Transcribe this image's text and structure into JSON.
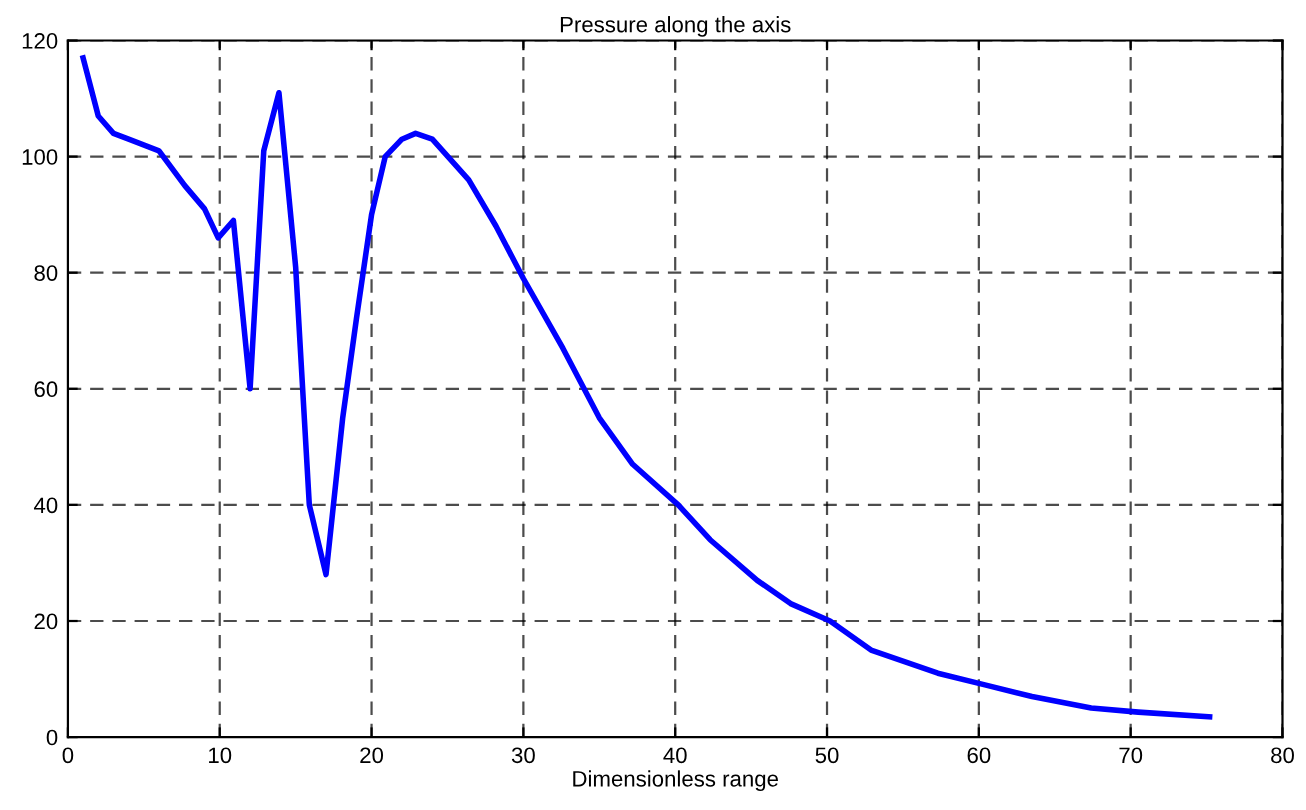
{
  "chart_data": {
    "type": "line",
    "title": "Pressure along the axis",
    "xlabel": "Dimensionless range",
    "x": [
      1,
      2,
      3,
      4,
      6,
      7.7,
      9,
      9.9,
      10.9,
      12,
      12.9,
      13.9,
      15,
      15.9,
      17,
      18.1,
      19,
      20,
      20.9,
      22,
      22.9,
      24,
      26.4,
      28.2,
      30,
      32.6,
      35,
      37.2,
      40.2,
      42.3,
      45.4,
      47.6,
      50.2,
      52.9,
      55.1,
      57.3,
      60.4,
      63.5,
      67.4,
      70.5,
      75.2
    ],
    "series": [
      {
        "color": "#0000ff",
        "values": [
          117,
          107,
          104,
          103,
          101,
          95,
          91,
          86,
          89,
          60,
          101,
          111,
          81,
          40,
          28,
          55,
          72,
          90,
          100,
          103,
          104,
          103,
          96,
          88,
          79,
          67,
          55,
          47,
          40,
          34,
          27,
          23,
          20,
          15,
          13,
          11,
          9,
          7,
          5,
          4.3,
          3.5
        ]
      }
    ],
    "xlim": [
      0,
      80
    ],
    "ylim": [
      0,
      120
    ],
    "xticks": [
      0,
      10,
      20,
      30,
      40,
      50,
      60,
      70,
      80
    ],
    "yticks": [
      0,
      20,
      40,
      60,
      80,
      100,
      120
    ],
    "grid": true,
    "line_style": "solid",
    "marker": "none"
  }
}
